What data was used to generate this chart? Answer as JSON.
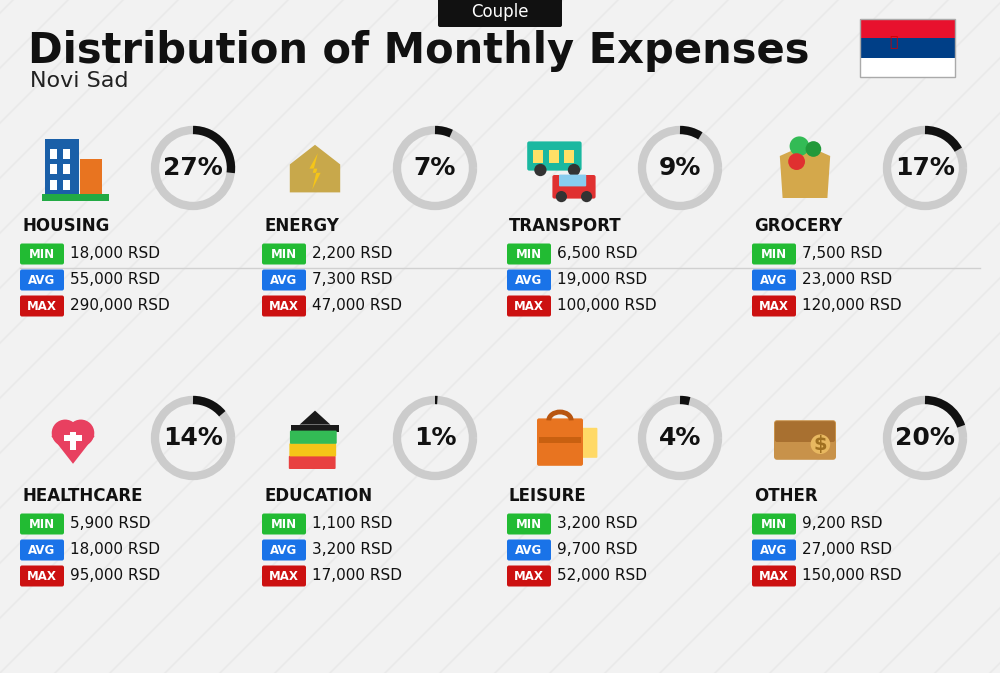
{
  "title": "Distribution of Monthly Expenses",
  "subtitle": "Novi Sad",
  "badge": "Couple",
  "bg_color": "#f2f2f2",
  "categories": [
    {
      "name": "HOUSING",
      "percent": 27,
      "min_val": "18,000 RSD",
      "avg_val": "55,000 RSD",
      "max_val": "290,000 RSD"
    },
    {
      "name": "ENERGY",
      "percent": 7,
      "min_val": "2,200 RSD",
      "avg_val": "7,300 RSD",
      "max_val": "47,000 RSD"
    },
    {
      "name": "TRANSPORT",
      "percent": 9,
      "min_val": "6,500 RSD",
      "avg_val": "19,000 RSD",
      "max_val": "100,000 RSD"
    },
    {
      "name": "GROCERY",
      "percent": 17,
      "min_val": "7,500 RSD",
      "avg_val": "23,000 RSD",
      "max_val": "120,000 RSD"
    },
    {
      "name": "HEALTHCARE",
      "percent": 14,
      "min_val": "5,900 RSD",
      "avg_val": "18,000 RSD",
      "max_val": "95,000 RSD"
    },
    {
      "name": "EDUCATION",
      "percent": 1,
      "min_val": "1,100 RSD",
      "avg_val": "3,200 RSD",
      "max_val": "17,000 RSD"
    },
    {
      "name": "LEISURE",
      "percent": 4,
      "min_val": "3,200 RSD",
      "avg_val": "9,700 RSD",
      "max_val": "52,000 RSD"
    },
    {
      "name": "OTHER",
      "percent": 20,
      "min_val": "9,200 RSD",
      "avg_val": "27,000 RSD",
      "max_val": "150,000 RSD"
    }
  ],
  "color_min": "#22bb33",
  "color_avg": "#1a73e8",
  "color_max": "#cc1111",
  "color_arc_dark": "#111111",
  "color_arc_light": "#cccccc",
  "title_fontsize": 30,
  "subtitle_fontsize": 16,
  "badge_fontsize": 12,
  "cat_fontsize": 11,
  "val_fontsize": 11,
  "pct_fontsize": 18,
  "flag_red": "#E8112D",
  "flag_blue": "#003F87",
  "flag_white": "#FFFFFF"
}
